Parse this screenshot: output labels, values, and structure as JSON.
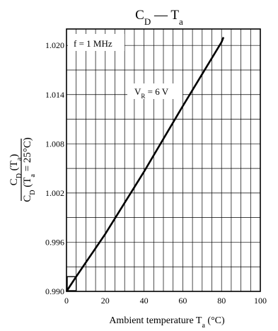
{
  "chart_data": {
    "type": "line",
    "title": {
      "main": "C",
      "main_sub": "D",
      "dash": " — ",
      "var": "T",
      "var_sub": "a"
    },
    "xlabel": {
      "text": "Ambient temperature  T",
      "sub": "a",
      "unit": "  (°C)"
    },
    "ylabel": {
      "num": "C",
      "num_sub": "D",
      "num_paren": " (T",
      "num_paren_sub": "a",
      "num_close": ")",
      "den": "C",
      "den_sub": "D",
      "den_paren": " (T",
      "den_paren_sub": "a",
      "den_rest": " = 25°C)"
    },
    "xlim": [
      0,
      100
    ],
    "ylim": [
      0.99,
      1.022
    ],
    "x_ticks": [
      0,
      20,
      40,
      60,
      80,
      100
    ],
    "x_tick_labels": [
      "0",
      "20",
      "40",
      "60",
      "80",
      "100"
    ],
    "y_ticks": [
      0.99,
      0.996,
      1.002,
      1.008,
      1.014,
      1.02
    ],
    "y_tick_labels": [
      "0.990",
      "0.996",
      "1.002",
      "1.008",
      "1.014",
      "1.020"
    ],
    "x_grid": [
      0,
      5,
      10,
      15,
      20,
      25,
      30,
      35,
      40,
      45,
      50,
      55,
      60,
      65,
      70,
      75,
      80,
      85,
      90,
      95,
      100
    ],
    "y_grid": [
      0.99,
      0.993,
      0.996,
      0.999,
      1.002,
      1.005,
      1.008,
      1.011,
      1.014,
      1.017,
      1.02
    ],
    "grid": true,
    "annotations": [
      {
        "text": "f = 1 MHz",
        "at": "top-left"
      },
      {
        "main": "V",
        "sub": "R",
        "rest": " = 6 V"
      }
    ],
    "series": [
      {
        "x": [
          0,
          5,
          20,
          40,
          60,
          80,
          81
        ],
        "y": [
          0.99,
          0.9918,
          0.997,
          1.0046,
          1.0126,
          1.0204,
          1.021
        ]
      }
    ]
  }
}
